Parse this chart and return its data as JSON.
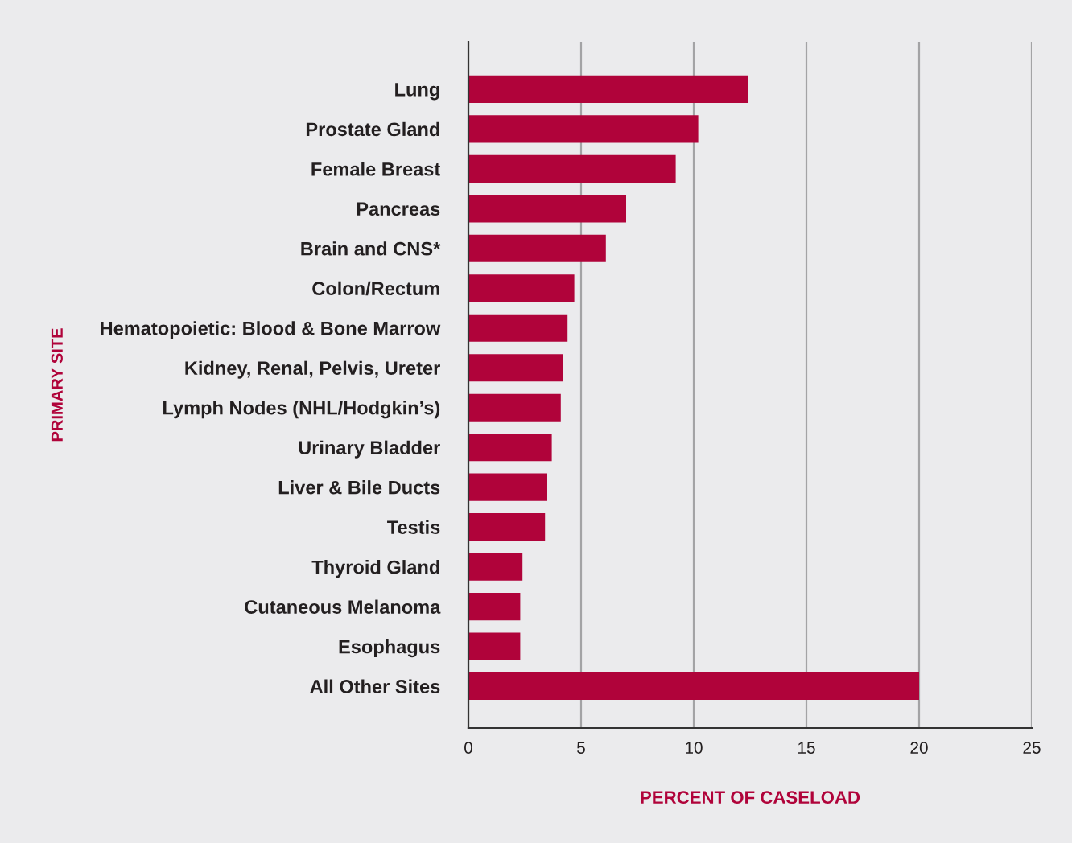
{
  "chart_data": {
    "type": "bar",
    "orientation": "horizontal",
    "categories": [
      "Lung",
      "Prostate Gland",
      "Female Breast",
      "Pancreas",
      "Brain and CNS*",
      "Colon/Rectum",
      "Hematopoietic: Blood & Bone Marrow",
      "Kidney, Renal, Pelvis, Ureter",
      "Lymph Nodes (NHL/Hodgkin’s)",
      "Urinary Bladder",
      "Liver & Bile Ducts",
      "Testis",
      "Thyroid Gland",
      "Cutaneous Melanoma",
      "Esophagus",
      "All Other Sites"
    ],
    "values": [
      12.4,
      10.2,
      9.2,
      7.0,
      6.1,
      4.7,
      4.4,
      4.2,
      4.1,
      3.7,
      3.5,
      3.4,
      2.4,
      2.3,
      2.3,
      20.0
    ],
    "color": "#b0033a",
    "xlim": [
      0,
      25
    ],
    "xticks": [
      0,
      5,
      10,
      15,
      20,
      25
    ],
    "grid": "x",
    "xlabel": "PERCENT OF CASELOAD",
    "ylabel": "PRIMARY SITE"
  }
}
